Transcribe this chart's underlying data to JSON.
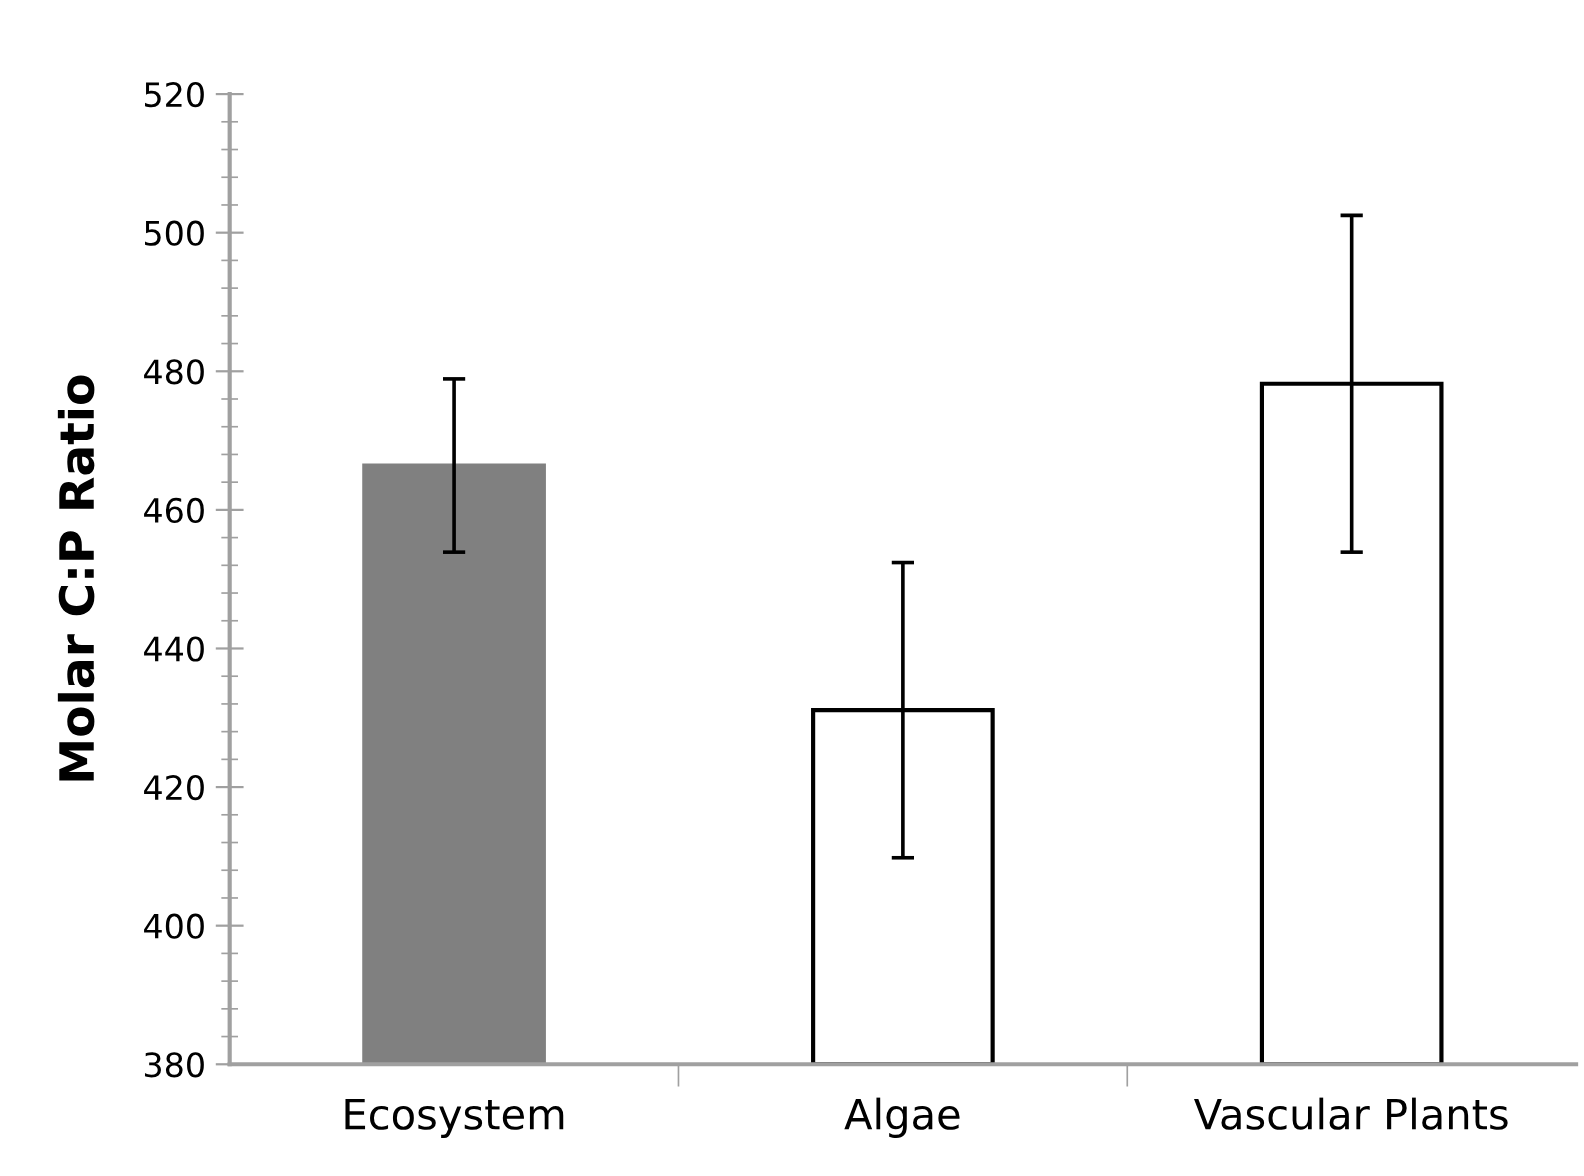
{
  "chart_data": {
    "type": "bar",
    "ylabel": "Molar C:P Ratio",
    "categories": [
      "Ecosystem",
      "Algae",
      "Vascular Plants"
    ],
    "values": [
      466.4,
      431.1,
      478.2
    ],
    "colors": [
      "#808080",
      "#ffffff",
      "#ffffff"
    ],
    "errors": [
      12.5,
      21.3,
      24.3
    ],
    "ylim": [
      380,
      520
    ],
    "yticks": [
      380,
      400,
      420,
      440,
      460,
      480,
      500,
      520
    ],
    "grid": false,
    "legend": false
  }
}
